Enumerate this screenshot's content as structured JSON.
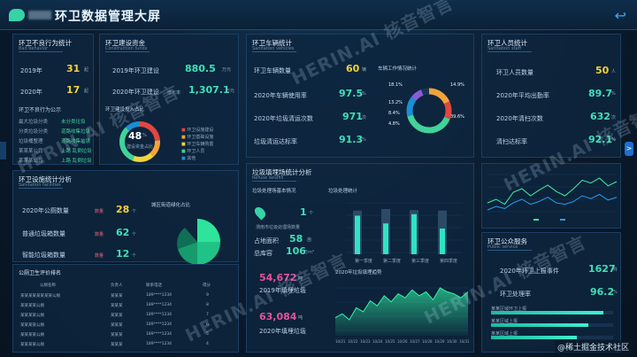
{
  "header": {
    "title": "环卫数据管理大屏",
    "back": "↩"
  },
  "behavior": {
    "title": "环卫不良行为统计",
    "sub": "Bad behavior",
    "rows": [
      {
        "year": "2019年",
        "val": "31",
        "unit": "起"
      },
      {
        "year": "2020年",
        "val": "17",
        "unit": "起"
      }
    ],
    "list_title": "环卫不良行为公示",
    "items": [
      {
        "name": "最大垃圾分类",
        "tag": "未分类垃圾"
      },
      {
        "name": "分类垃圾分类",
        "tag": "道路收集垃圾"
      },
      {
        "name": "垃圾桶整理",
        "tag": "道路收集垃圾"
      },
      {
        "name": "某某某公司",
        "tag": "上路 乱倒垃圾"
      },
      {
        "name": "某某某公司",
        "tag": "上路 乱倒垃圾"
      }
    ]
  },
  "fund": {
    "title": "环卫建设资金",
    "sub": "Construction funds",
    "r1_label": "2019年环卫建设",
    "r1_val": "880.5",
    "r1_unit": "万元",
    "r2_label": "2020年环卫建设",
    "r2_rate": "增长率",
    "r2_val": "1,307.1",
    "r2_unit": "万元",
    "donut_title": "环卫建设投入占比",
    "donut_center": "48",
    "donut_pct": "%",
    "donut_sub": "建设资金占比",
    "legend": [
      "环卫设施建设",
      "环卫基础设施",
      "环卫车辆购置",
      "环卫人员",
      "其他"
    ],
    "colors": [
      "#e0473f",
      "#f2a33a",
      "#f1d43b",
      "#41d39a",
      "#1a8fd3"
    ]
  },
  "vehicle": {
    "title": "环卫车辆统计",
    "sub": "Sanitation vehicles",
    "rows": [
      {
        "label": "环卫车辆数量",
        "val": "60",
        "unit": "辆"
      },
      {
        "label": "2020年车辆使用率",
        "val": "97.5",
        "unit": "%"
      },
      {
        "label": "2020年垃圾清运次数",
        "val": "971",
        "unit": "次"
      },
      {
        "label": "垃圾清运达标率",
        "val": "91.3",
        "unit": "%"
      }
    ],
    "ring_title": "车辆工作情况统计",
    "ring_labels": [
      {
        "v": "18.1%",
        "d": "…"
      },
      {
        "v": "13.2%",
        "d": "…"
      },
      {
        "v": "8.4%",
        "d": "…"
      },
      {
        "v": "4.8%",
        "d": "…"
      },
      {
        "v": "14.9%",
        "d": "…"
      },
      {
        "v": "39.6%",
        "d": "…"
      }
    ]
  },
  "staff": {
    "title": "环卫人员统计",
    "sub": "Sanitation staff",
    "rows": [
      {
        "label": "环卫人员数量",
        "val": "50",
        "unit": "人"
      },
      {
        "label": "2020年平均出勤率",
        "val": "89.7",
        "unit": "%"
      },
      {
        "label": "2020年清扫次数",
        "val": "632",
        "unit": "次"
      },
      {
        "label": "清扫达标率",
        "val": "92.1",
        "unit": "%"
      }
    ]
  },
  "facility": {
    "title": "环卫设施统计分析",
    "sub": "Sanitation facilities",
    "rows": [
      {
        "label": "2020年公厕数量",
        "badge": "数量",
        "val": "28",
        "unit": "个"
      },
      {
        "label": "普通垃圾箱数量",
        "badge": "数量",
        "val": "62",
        "unit": "个"
      },
      {
        "label": "智能垃圾箱数量",
        "badge": "数量",
        "val": "12",
        "unit": "个"
      }
    ],
    "pie_title": "城区街道绿化占比"
  },
  "toilets": {
    "title": "公厕卫生评价排名",
    "headers": [
      "公厕名称",
      "负责人",
      "联系电话",
      "得分"
    ],
    "rows": [
      [
        "某某某某某某某某公厕",
        "某某某",
        "189****1234",
        "9"
      ],
      [
        "某某某某公厕",
        "某某某",
        "189****1234",
        "8"
      ],
      [
        "某某某某公厕",
        "某某某",
        "189****1234",
        "7"
      ],
      [
        "某某某某公厕",
        "某某某",
        "189****1234",
        "6"
      ],
      [
        "某某某某公厕",
        "某某某",
        "189****1234",
        "5"
      ],
      [
        "某某某某公厕",
        "某某某",
        "189****1234",
        "4"
      ]
    ]
  },
  "landfill": {
    "title": "垃圾填埋场统计分析",
    "sub": "Refuse landfill",
    "info_title": "垃圾处理场基本情况",
    "site_count": "1",
    "site_unit": "个",
    "site_label": "渭南市垃圾处理场数量",
    "area_label": "占地面积",
    "area_val": "58",
    "area_unit": "亩",
    "cap_label": "总库容",
    "cap_val": "106",
    "cap_unit": "万m³",
    "stat_title": "垃圾处理统计",
    "bar_labels": [
      "第一季度",
      "第二季度",
      "第三季度",
      "第四季度"
    ],
    "v1": "54,672",
    "v1_unit": "吨",
    "v1_label": "2019年填埋垃圾",
    "v2": "63,084",
    "v2_unit": "吨",
    "v2_label": "2020年填埋垃圾",
    "trend_title": "2020年垃圾填埋趋势",
    "trend_x": [
      "10/21",
      "10/22",
      "10/23",
      "10/24",
      "10/25",
      "10/26",
      "10/27",
      "10/28",
      "10/29",
      "10/30",
      "10/31"
    ]
  },
  "complaint": {
    "title": "环卫公众服务",
    "sub": "Public service",
    "r1_label": "2020年环卫上报事件",
    "r1_val": "1627",
    "r1_unit": "件",
    "r2_label": "环卫处理率",
    "r2_val": "96.2",
    "r2_unit": "%",
    "bars": [
      {
        "label": "某某区域环卫上报",
        "v": 92
      },
      {
        "label": "某某区域上报",
        "v": 80
      },
      {
        "label": "某某区域上报",
        "v": 70
      }
    ]
  },
  "watermark": {
    "text": "HERIN.AI 核音智言",
    "corner": "@稀土掘金技术社区"
  },
  "chart_data": {
    "type": "line",
    "title": "",
    "series": [
      {
        "values": [
          20,
          25,
          18,
          35,
          40,
          30,
          38,
          45,
          36,
          30,
          40,
          52,
          48,
          55,
          44,
          50
        ]
      },
      {
        "values": [
          10,
          15,
          12,
          20,
          25,
          18,
          22,
          28,
          20,
          18,
          22,
          30,
          26,
          32,
          24,
          28
        ]
      }
    ]
  }
}
